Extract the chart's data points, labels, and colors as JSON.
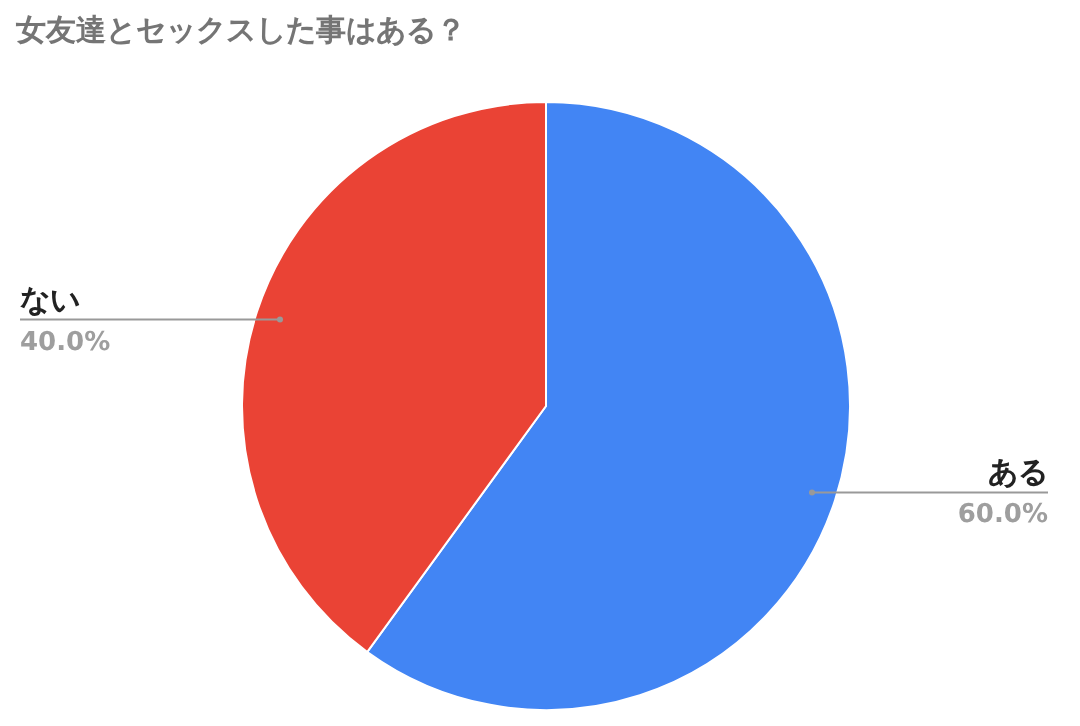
{
  "chart_data": {
    "type": "pie",
    "title": "女友達とセックスした事はある？",
    "categories": [
      "ある",
      "ない"
    ],
    "values": [
      60,
      40
    ],
    "value_labels": [
      "60.0%",
      "40.0%"
    ],
    "colors": [
      "#4285f4",
      "#ea4335"
    ]
  }
}
